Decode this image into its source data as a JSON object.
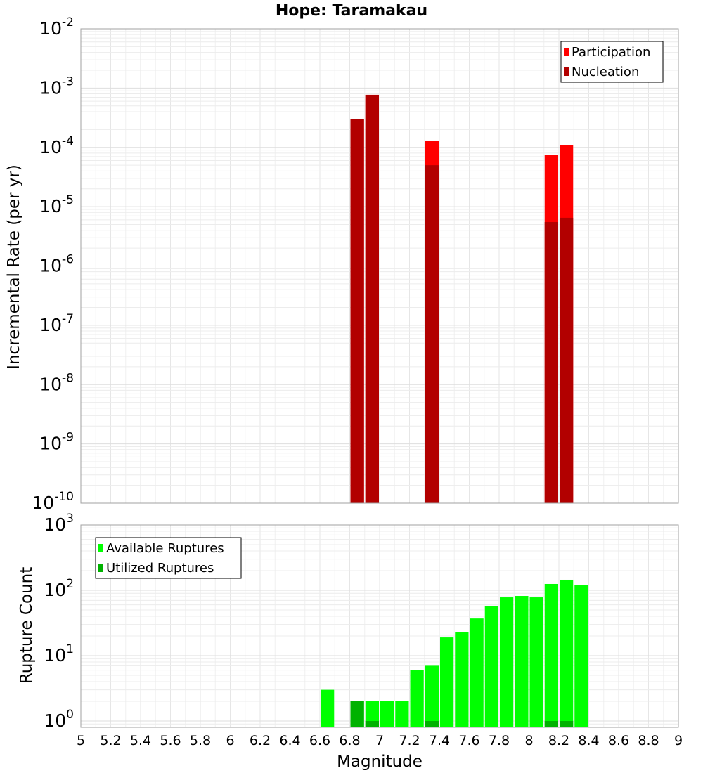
{
  "title": "Hope: Taramakau",
  "xlabel": "Magnitude",
  "chart_data": [
    {
      "type": "bar",
      "ylabel": "Incremental Rate (per yr)",
      "yscale": "log",
      "ylim": [
        1e-10,
        0.01
      ],
      "xlim": [
        5,
        9
      ],
      "bin_width": 0.1,
      "legend_position": "top-right",
      "grid": true,
      "series": [
        {
          "name": "Participation",
          "color": "#ff0000",
          "points": [
            {
              "x": 6.85,
              "y": 0.0003
            },
            {
              "x": 6.95,
              "y": 0.00077
            },
            {
              "x": 7.35,
              "y": 0.00013
            },
            {
              "x": 8.15,
              "y": 7.5e-05
            },
            {
              "x": 8.25,
              "y": 0.00011
            }
          ]
        },
        {
          "name": "Nucleation",
          "color": "#b20000",
          "points": [
            {
              "x": 6.85,
              "y": 0.0003
            },
            {
              "x": 6.95,
              "y": 0.00077
            },
            {
              "x": 7.35,
              "y": 5e-05
            },
            {
              "x": 8.15,
              "y": 5.5e-06
            },
            {
              "x": 8.25,
              "y": 6.5e-06
            }
          ]
        }
      ],
      "yticks": [
        {
          "base": "10",
          "exp": "-2",
          "value": 0.01
        },
        {
          "base": "10",
          "exp": "-3",
          "value": 0.001
        },
        {
          "base": "10",
          "exp": "-4",
          "value": 0.0001
        },
        {
          "base": "10",
          "exp": "-5",
          "value": 1e-05
        },
        {
          "base": "10",
          "exp": "-6",
          "value": 1e-06
        },
        {
          "base": "10",
          "exp": "-7",
          "value": 1e-07
        },
        {
          "base": "10",
          "exp": "-8",
          "value": 1e-08
        },
        {
          "base": "10",
          "exp": "-9",
          "value": 1e-09
        },
        {
          "base": "10",
          "exp": "-10",
          "value": 1e-10
        }
      ]
    },
    {
      "type": "bar",
      "ylabel": "Rupture Count",
      "yscale": "log",
      "ylim": [
        0.8,
        1000
      ],
      "xlim": [
        5,
        9
      ],
      "bin_width": 0.1,
      "legend_position": "top-left",
      "grid": true,
      "series": [
        {
          "name": "Available Ruptures",
          "color": "#00ff00",
          "points": [
            {
              "x": 6.65,
              "y": 3
            },
            {
              "x": 6.85,
              "y": 2
            },
            {
              "x": 6.95,
              "y": 2
            },
            {
              "x": 7.05,
              "y": 2
            },
            {
              "x": 7.15,
              "y": 2
            },
            {
              "x": 7.25,
              "y": 6
            },
            {
              "x": 7.35,
              "y": 7
            },
            {
              "x": 7.45,
              "y": 19
            },
            {
              "x": 7.55,
              "y": 23
            },
            {
              "x": 7.65,
              "y": 37
            },
            {
              "x": 7.75,
              "y": 57
            },
            {
              "x": 7.85,
              "y": 78
            },
            {
              "x": 7.95,
              "y": 82
            },
            {
              "x": 8.05,
              "y": 78
            },
            {
              "x": 8.15,
              "y": 125
            },
            {
              "x": 8.25,
              "y": 145
            },
            {
              "x": 8.35,
              "y": 120
            }
          ]
        },
        {
          "name": "Utilized Ruptures",
          "color": "#00b200",
          "points": [
            {
              "x": 6.85,
              "y": 2
            },
            {
              "x": 6.95,
              "y": 1
            },
            {
              "x": 7.35,
              "y": 1
            },
            {
              "x": 8.15,
              "y": 1
            },
            {
              "x": 8.25,
              "y": 1
            }
          ]
        }
      ],
      "yticks": [
        {
          "base": "10",
          "exp": "3",
          "value": 1000
        },
        {
          "base": "10",
          "exp": "2",
          "value": 100
        },
        {
          "base": "10",
          "exp": "1",
          "value": 10
        },
        {
          "base": "10",
          "exp": "0",
          "value": 1
        }
      ]
    }
  ],
  "xticks": [
    "5",
    "5.2",
    "5.4",
    "5.6",
    "5.8",
    "6",
    "6.2",
    "6.4",
    "6.6",
    "6.8",
    "7",
    "7.2",
    "7.4",
    "7.6",
    "7.8",
    "8",
    "8.2",
    "8.4",
    "8.6",
    "8.8",
    "9"
  ]
}
